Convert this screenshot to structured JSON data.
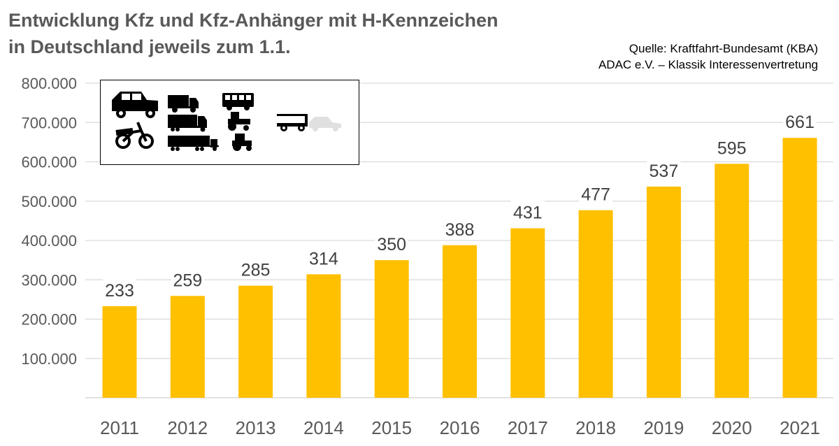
{
  "title_line1": "Entwicklung Kfz und Kfz-Anhänger mit H-Kennzeichen",
  "title_line2": "in Deutschland jeweils zum 1.1.",
  "source_line1": "Quelle: Kraftfahrt-Bundesamt (KBA)",
  "source_line2": "ADAC e.V. – Klassik Interessenvertretung",
  "legend_icons": [
    "car-icon",
    "motorcycle-icon",
    "truck-icon",
    "lorry-icon",
    "semi-truck-icon",
    "bus-icon",
    "tractor-icon",
    "small-tractor-icon",
    "trailer-icon",
    "grey-car-icon"
  ],
  "chart_data": {
    "type": "bar",
    "categories": [
      "2011",
      "2012",
      "2013",
      "2014",
      "2015",
      "2016",
      "2017",
      "2018",
      "2019",
      "2020",
      "2021"
    ],
    "values": [
      233000,
      259000,
      285000,
      314000,
      350000,
      388000,
      431000,
      477000,
      537000,
      595000,
      661000
    ],
    "data_labels": [
      "233",
      "259",
      "285",
      "314",
      "350",
      "388",
      "431",
      "477",
      "537",
      "595",
      "661"
    ],
    "ylim": [
      0,
      800000
    ],
    "yticks": [
      100000,
      200000,
      300000,
      400000,
      500000,
      600000,
      700000,
      800000
    ],
    "ytick_labels": [
      "100.000",
      "200.000",
      "300.000",
      "400.000",
      "500.000",
      "600.000",
      "700.000",
      "800.000"
    ],
    "grid": true,
    "bar_color": "#FFC000",
    "xlabel": "",
    "ylabel": ""
  }
}
